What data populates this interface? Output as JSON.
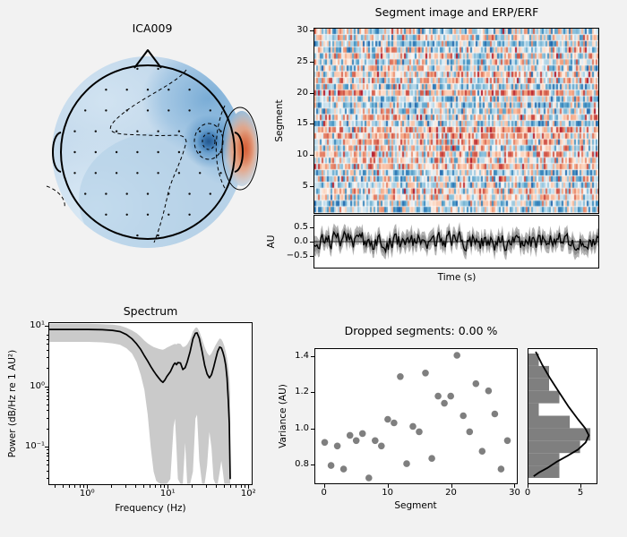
{
  "window": {
    "bg_color": "#f2f2f2",
    "panel_bg": "#ffffff",
    "spine_color": "#000000"
  },
  "topomap": {
    "title": "ICA009",
    "colormap": "RdBu_r"
  },
  "segment_image": {
    "title": "Segment image and ERP/ERF",
    "ylabel": "Segment",
    "yticks": [
      5,
      10,
      15,
      20,
      25,
      30
    ],
    "n_segments": 30,
    "colormap": "RdBu_r",
    "noise_seed": 20319
  },
  "erp": {
    "ylabel": "AU",
    "xlabel": "Time (s)",
    "ytick_labels": [
      "0.5",
      "0.0",
      "−0.5"
    ],
    "yticks": [
      0.5,
      0.0,
      -0.5
    ],
    "ylim": [
      -0.95,
      0.95
    ],
    "noise_seed": 811,
    "band_color": "#b3b3b3",
    "inner_band_color": "#8f8f8f",
    "line_color": "#000000"
  },
  "spectrum": {
    "title": "Spectrum",
    "xlabel": "Frequency (Hz)",
    "ylabel": "Power (dB/Hz re 1 AU²)",
    "xtick_labels": [
      "10⁰",
      "10¹",
      "10²"
    ],
    "ytick_labels": [
      "10¹",
      "10⁰",
      "10⁻¹"
    ],
    "band_color": "#cacaca",
    "line_color": "#000000"
  },
  "variance": {
    "title": "Dropped segments: 0.00 %",
    "xlabel": "Segment",
    "ylabel": "Variance (AU)",
    "xticks": [
      0,
      10,
      20,
      30
    ],
    "ytick_labels": [
      "0.8",
      "1.0",
      "1.2",
      "1.4"
    ],
    "dot_color": "#7f7f7f"
  },
  "histogram": {
    "xticks": [
      0,
      5
    ],
    "bar_color": "#7f7f7f",
    "curve_color": "#000000"
  },
  "chart_data": [
    {
      "id": "ica_topomap",
      "type": "heatmap",
      "title": "ICA009",
      "colormap": "RdBu_r",
      "description": "EEG scalp topography: mostly light blue, darker blue wash at right-frontal area, focal dark-blue spot right-central, red/orange focus at right temporal edge near ear, dashed negative contours, solid positive contour, black electrode dots, head outline with nose and ears"
    },
    {
      "id": "segment_image",
      "type": "heatmap",
      "title": "Segment image and ERP/ERF",
      "ylabel": "Segment",
      "ylim": [
        0.5,
        30.5
      ],
      "yticks": [
        5,
        10,
        15,
        20,
        25,
        30
      ],
      "n_segments": 30,
      "colormap": "RdBu_r",
      "description": "30 segment rows of random red/white/blue activity stripes vs time"
    },
    {
      "id": "erp_erf",
      "type": "line",
      "xlabel": "Time (s)",
      "ylabel": "AU",
      "ylim": [
        -0.95,
        0.95
      ],
      "yticks": [
        0.5,
        0.0,
        -0.5
      ],
      "description": "noisy black mean trace fluctuating around 0 (about ±0.4) with gray confidence band about ±0.3–0.6 and horizontal zero line"
    },
    {
      "id": "spectrum",
      "type": "line",
      "title": "Spectrum",
      "xlabel": "Frequency (Hz)",
      "ylabel": "Power (dB/Hz re 1 AU²)",
      "xscale": "log",
      "yscale": "log",
      "xlim": [
        0.33,
        107
      ],
      "ylim": [
        0.0247,
        11.5
      ],
      "x": [
        0.33,
        0.6,
        1.0,
        1.5,
        2.0,
        2.5,
        3.0,
        3.5,
        4.0,
        4.5,
        5.0,
        5.5,
        6.0,
        6.5,
        7.0,
        7.5,
        8.0,
        8.5,
        9.0,
        9.5,
        10.5,
        11.5,
        12.0,
        12.5,
        13.0,
        14.0,
        15.0,
        16.0,
        17.0,
        18.5,
        20.0,
        21.5,
        22.5,
        24.0,
        26.0,
        28.0,
        30.0,
        32.0,
        34.0,
        36.0,
        38.0,
        40.5,
        43.0,
        45.0,
        47.0,
        49.0,
        51.0,
        53.0,
        55.0,
        56.5,
        58.0
      ],
      "y": [
        9.0,
        9.0,
        9.0,
        8.9,
        8.7,
        8.3,
        7.4,
        6.3,
        5.2,
        4.2,
        3.3,
        2.7,
        2.2,
        1.85,
        1.6,
        1.42,
        1.28,
        1.2,
        1.32,
        1.5,
        1.8,
        2.35,
        2.5,
        2.35,
        2.55,
        2.5,
        1.95,
        2.1,
        2.6,
        3.9,
        6.3,
        7.8,
        7.9,
        6.4,
        3.9,
        2.3,
        1.65,
        1.42,
        1.6,
        2.1,
        2.8,
        3.9,
        4.6,
        4.45,
        3.8,
        3.1,
        2.3,
        1.4,
        0.6,
        0.25,
        0.03
      ],
      "band_upper": [
        11.2,
        11.2,
        11.2,
        11.0,
        10.8,
        10.4,
        9.6,
        8.7,
        7.8,
        6.8,
        5.9,
        5.3,
        4.9,
        4.6,
        4.45,
        4.3,
        4.2,
        4.15,
        4.3,
        4.5,
        4.8,
        5.1,
        5.2,
        5.1,
        5.3,
        5.2,
        4.6,
        4.7,
        5.1,
        6.2,
        8.4,
        9.6,
        9.7,
        8.4,
        6.2,
        4.6,
        3.7,
        3.3,
        3.6,
        4.2,
        4.9,
        5.7,
        6.4,
        6.2,
        5.6,
        4.8,
        3.9,
        3.0,
        2.1,
        1.5,
        0.8
      ],
      "band_lower": [
        5.6,
        5.6,
        5.6,
        5.5,
        5.3,
        5.0,
        4.4,
        3.6,
        2.6,
        1.6,
        0.9,
        0.35,
        0.1,
        0.04,
        0.028,
        0.026,
        0.025,
        0.025,
        0.025,
        0.025,
        0.03,
        0.22,
        0.3,
        0.1,
        0.03,
        0.025,
        0.025,
        0.12,
        0.025,
        0.025,
        0.04,
        0.3,
        0.35,
        0.06,
        0.025,
        0.025,
        0.05,
        0.18,
        0.1,
        0.03,
        0.025,
        0.025,
        0.04,
        0.06,
        0.04,
        0.025,
        0.025,
        0.025,
        0.025,
        0.025,
        0.02
      ]
    },
    {
      "id": "segment_variance",
      "type": "scatter",
      "title": "Dropped segments: 0.00 %",
      "xlabel": "Segment",
      "ylabel": "Variance (AU)",
      "xlim": [
        -1.5,
        30.5
      ],
      "ylim": [
        0.69,
        1.445
      ],
      "xticks": [
        0,
        10,
        20,
        30
      ],
      "yticks": [
        0.8,
        1.0,
        1.2,
        1.4
      ],
      "x": [
        0,
        1,
        2,
        3,
        4,
        5,
        6,
        7,
        8,
        9,
        10,
        11,
        12,
        13,
        14,
        15,
        16,
        17,
        18,
        19,
        20,
        21,
        22,
        23,
        24,
        25,
        26,
        27,
        28,
        29
      ],
      "y": [
        0.92,
        0.79,
        0.9,
        0.77,
        0.96,
        0.93,
        0.97,
        0.72,
        0.93,
        0.9,
        1.05,
        1.03,
        1.29,
        0.8,
        1.01,
        0.98,
        1.31,
        0.83,
        1.18,
        1.14,
        1.18,
        1.41,
        1.07,
        0.98,
        1.25,
        0.87,
        1.21,
        1.08,
        0.77,
        0.93
      ]
    },
    {
      "id": "variance_histogram",
      "type": "bar",
      "orientation": "horizontal",
      "xlim": [
        0,
        6.6
      ],
      "xticks": [
        0,
        5
      ],
      "bin_edges_top_down": [
        1.42,
        1.35,
        1.28,
        1.21,
        1.14,
        1.07,
        1.0,
        0.93,
        0.86,
        0.79,
        0.72
      ],
      "counts_top_down": [
        1,
        2,
        2,
        3,
        1,
        4,
        6,
        5,
        3,
        3
      ],
      "fit_curve": [
        [
          0.7,
          1.43
        ],
        [
          1.3,
          1.36
        ],
        [
          2.1,
          1.28
        ],
        [
          3.0,
          1.2
        ],
        [
          3.9,
          1.12
        ],
        [
          4.8,
          1.05
        ],
        [
          5.5,
          1.0
        ],
        [
          5.85,
          0.96
        ],
        [
          5.55,
          0.92
        ],
        [
          4.8,
          0.88
        ],
        [
          3.8,
          0.845
        ],
        [
          2.7,
          0.81
        ],
        [
          1.8,
          0.775
        ],
        [
          1.0,
          0.75
        ],
        [
          0.5,
          0.73
        ]
      ]
    }
  ]
}
